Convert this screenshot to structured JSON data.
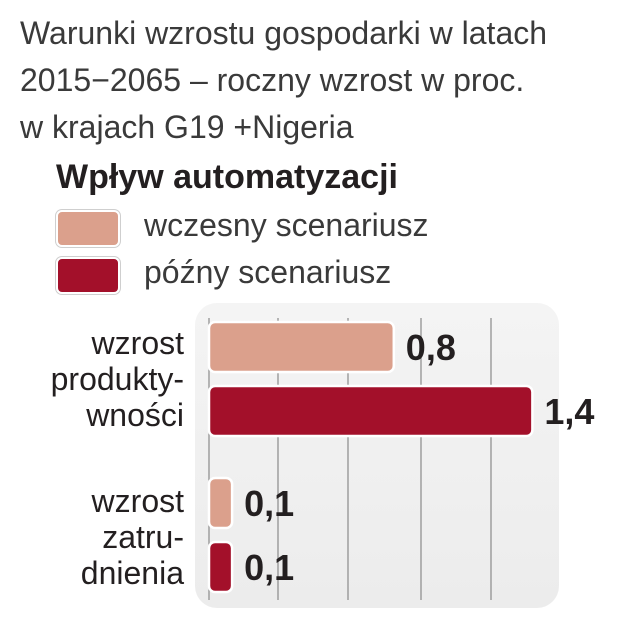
{
  "title_lines": [
    "Warunki wzrostu gospodarki w latach",
    "2015−2065 – roczny wzrost w proc.",
    "w krajach G19 +Nigeria"
  ],
  "legend": {
    "title": "Wpływ automatyzacji",
    "items": [
      {
        "label": "wczesny scenariusz",
        "color": "#dba08c"
      },
      {
        "label": "późny scenariusz",
        "color": "#a3102a"
      }
    ]
  },
  "chart_data": {
    "type": "bar",
    "orientation": "horizontal",
    "title": "Warunki wzrostu gospodarki w latach 2015−2065 – roczny wzrost w proc. w krajach G19 +Nigeria",
    "categories": [
      [
        "wzrost",
        "produkty-",
        "wności"
      ],
      [
        "wzrost",
        "zatru-",
        "dnienia"
      ]
    ],
    "series": [
      {
        "name": "wczesny scenariusz",
        "color": "#dba08c",
        "values": [
          0.8,
          0.1
        ],
        "labels": [
          "0,8",
          "0,1"
        ]
      },
      {
        "name": "późny scenariusz",
        "color": "#a3102a",
        "values": [
          1.4,
          0.1
        ],
        "labels": [
          "1,4",
          "0,1"
        ]
      }
    ],
    "xlim": [
      0,
      1.4
    ],
    "grid": true,
    "legend_position": "top"
  }
}
